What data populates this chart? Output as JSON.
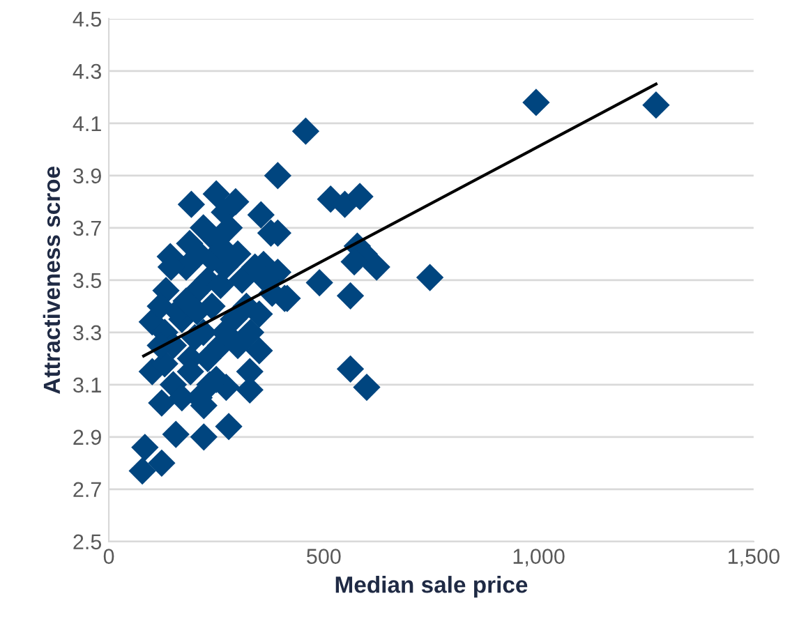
{
  "chart_data": {
    "type": "scatter",
    "xlabel": "Median sale price",
    "ylabel": "Attractiveness scroe",
    "xlim": [
      0,
      1500
    ],
    "ylim": [
      2.5,
      4.5
    ],
    "xticks": [
      0,
      500,
      {
        "value": 1000,
        "label": "1,000"
      },
      {
        "value": 1500,
        "label": "1,500"
      }
    ],
    "yticks": [
      2.5,
      2.7,
      2.9,
      3.1,
      3.3,
      3.5,
      3.7,
      3.9,
      4.1,
      4.3,
      4.5
    ],
    "grid": "y",
    "marker": "diamond",
    "series": [
      {
        "color": "#00457f",
        "x": [
          994,
          1273,
          458,
          393,
          516,
          549,
          584,
          393,
          578,
          594,
          571,
          623,
          393,
          490,
          747,
          409,
          562,
          562,
          600,
          192,
          250,
          295,
          354,
          377,
          269,
          143,
          188,
          360,
          415,
          350,
          350,
          328,
          328,
          279,
          221,
          156,
          123,
          84,
          78,
          123,
          101,
          101,
          133,
          221,
          273,
          120,
          130,
          150,
          170,
          180,
          190,
          200,
          210,
          220,
          230,
          240,
          250,
          260,
          270,
          290,
          300,
          310,
          320,
          330,
          340,
          150,
          170,
          190,
          210,
          230,
          250,
          270,
          130,
          160,
          200,
          240,
          280,
          220,
          180,
          260,
          300,
          120,
          145,
          205,
          235,
          265,
          365,
          380
        ],
        "values": [
          4.18,
          4.17,
          4.07,
          3.9,
          3.81,
          3.79,
          3.82,
          3.68,
          3.63,
          3.6,
          3.57,
          3.55,
          3.53,
          3.49,
          3.51,
          3.43,
          3.44,
          3.16,
          3.09,
          3.79,
          3.83,
          3.8,
          3.75,
          3.68,
          3.76,
          3.59,
          3.64,
          3.56,
          3.43,
          3.37,
          3.23,
          3.15,
          3.08,
          2.94,
          2.9,
          2.91,
          2.8,
          2.86,
          2.77,
          3.03,
          3.15,
          3.34,
          3.46,
          3.02,
          3.09,
          3.4,
          3.3,
          3.25,
          3.35,
          3.55,
          3.2,
          3.45,
          3.6,
          3.3,
          3.5,
          3.4,
          3.65,
          3.25,
          3.55,
          3.35,
          3.6,
          3.5,
          3.4,
          3.3,
          3.55,
          3.1,
          3.05,
          3.15,
          3.05,
          3.2,
          3.12,
          3.3,
          3.18,
          3.38,
          3.28,
          3.58,
          3.7,
          3.7,
          3.42,
          3.48,
          3.25,
          3.25,
          3.55,
          3.38,
          3.1,
          3.62,
          3.5,
          3.45
        ]
      },
      {
        "type": "line",
        "color": "#000000",
        "x": [
          81,
          1273
        ],
        "values": [
          3.21,
          4.25
        ],
        "marker": "none"
      }
    ]
  }
}
